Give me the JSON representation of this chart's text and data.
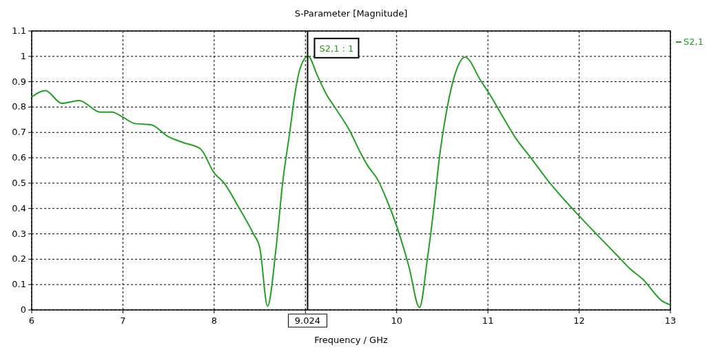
{
  "chart_data": {
    "type": "line",
    "title": "S-Parameter [Magnitude]",
    "xlabel": "Frequency / GHz",
    "xlim": [
      6,
      13
    ],
    "xticks": [
      6,
      7,
      8,
      {
        "value": 9,
        "label": null
      },
      10,
      11,
      12,
      13
    ],
    "ylim": [
      0,
      1.1
    ],
    "yticks": [
      0,
      0.1,
      0.2,
      0.3,
      0.4,
      0.5,
      0.6,
      0.7,
      0.8,
      0.9,
      1,
      1.1
    ],
    "grid": true,
    "legend": "top right",
    "line_style": "solid",
    "marker": "none",
    "ref_lines": [
      {
        "axis": "x",
        "value": 9.024,
        "label": "9.024",
        "color": "#000000"
      }
    ],
    "annotations": [
      {
        "text": "S2,1 : 1",
        "x": 9.024,
        "y": 1
      }
    ],
    "series": [
      {
        "name": "S2,1",
        "color": "#22a022",
        "x": [
          6,
          6.15,
          6.33,
          6.52,
          6.75,
          6.88,
          7.0,
          7.13,
          7.31,
          7.49,
          7.66,
          7.85,
          8.0,
          8.11,
          8.26,
          8.43,
          8.5,
          8.585,
          8.68,
          8.75,
          8.83,
          8.88,
          8.94,
          9.03,
          9.13,
          9.23,
          9.33,
          9.48,
          9.61,
          9.68,
          9.79,
          9.885,
          10.01,
          10.135,
          10.25,
          10.34,
          10.41,
          10.47,
          10.54,
          10.64,
          10.75,
          10.92,
          11.02,
          11.15,
          11.3,
          11.47,
          11.68,
          11.95,
          12.2,
          12.43,
          12.55,
          12.7,
          12.91,
          13.0
        ],
        "values": [
          0.84,
          0.865,
          0.815,
          0.826,
          0.78,
          0.78,
          0.76,
          0.735,
          0.73,
          0.685,
          0.66,
          0.635,
          0.54,
          0.5,
          0.41,
          0.3,
          0.245,
          0.015,
          0.25,
          0.5,
          0.705,
          0.84,
          0.95,
          1.0,
          0.925,
          0.85,
          0.795,
          0.71,
          0.615,
          0.57,
          0.515,
          0.44,
          0.32,
          0.17,
          0.01,
          0.21,
          0.41,
          0.605,
          0.77,
          0.93,
          0.997,
          0.905,
          0.85,
          0.77,
          0.68,
          0.6,
          0.5,
          0.39,
          0.295,
          0.21,
          0.165,
          0.12,
          0.035,
          0.02
        ]
      }
    ]
  }
}
